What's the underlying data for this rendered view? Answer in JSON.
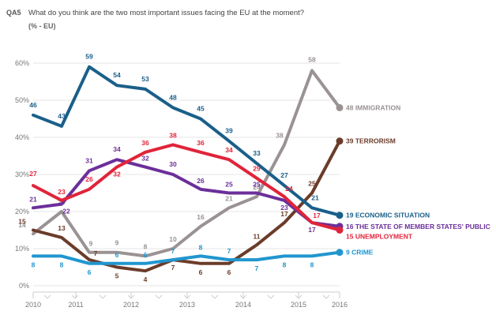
{
  "header": {
    "question_id": "QA5",
    "question": "What do you think are the two most important issues facing the EU at the moment?",
    "unit": "(% - EU)"
  },
  "chart_data": {
    "type": "line",
    "title": "What do you think are the two most important issues facing the EU at the moment?",
    "ylabel": "",
    "xlabel": "",
    "ylim": [
      0,
      60
    ],
    "y_ticks": [
      "0%",
      "10%",
      "20%",
      "30%",
      "40%",
      "50%",
      "60%"
    ],
    "x_ticks": [
      "2010",
      "2011",
      "2012",
      "2013",
      "2014",
      "2015",
      "2016"
    ],
    "grid": true,
    "legend": "end-of-line labels",
    "series": [
      {
        "name": "IMMIGRATION",
        "end_label": "48 IMMIGRATION",
        "color": "#9a9293",
        "values": [
          14,
          20,
          9,
          9,
          8,
          10,
          16,
          21,
          24,
          38,
          58,
          48
        ]
      },
      {
        "name": "TERRORISM",
        "end_label": "39 TERRORISM",
        "color": "#6b3c2a",
        "values": [
          15,
          13,
          7,
          5,
          4,
          7,
          6,
          6,
          11,
          17,
          25,
          39
        ]
      },
      {
        "name": "ECONOMIC SITUATION",
        "end_label": "19 ECONOMIC SITUATION",
        "color": "#1a5f8a",
        "values": [
          46,
          43,
          59,
          54,
          53,
          48,
          45,
          39,
          33,
          27,
          21,
          19
        ]
      },
      {
        "name": "THE STATE OF MEMBER STATES' PUBLIC",
        "end_label": "16 THE STATE OF MEMBER STATES' PUBLIC",
        "color": "#6b2f9a",
        "values": [
          21,
          22,
          31,
          34,
          32,
          30,
          26,
          25,
          25,
          23,
          17,
          16
        ]
      },
      {
        "name": "UNEMPLOYMENT",
        "end_label": "15 UNEMPLOYMENT",
        "color": "#e0243a",
        "values": [
          27,
          23,
          26,
          32,
          36,
          38,
          36,
          34,
          29,
          24,
          17,
          15
        ]
      },
      {
        "name": "CRIME",
        "end_label": "9 CRIME",
        "color": "#2096cf",
        "values": [
          8,
          8,
          6,
          6,
          6,
          7,
          8,
          7,
          7,
          8,
          8,
          9
        ]
      }
    ]
  }
}
